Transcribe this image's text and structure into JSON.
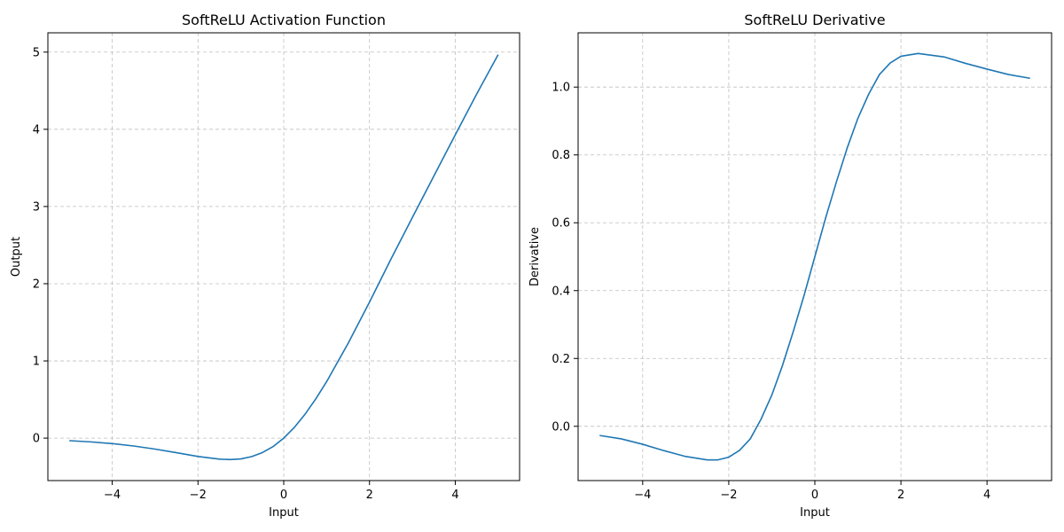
{
  "chart_data": [
    {
      "type": "line",
      "title": "SoftReLU Activation Function",
      "xlabel": "Input",
      "ylabel": "Output",
      "xlim": [
        -5.5,
        5.5
      ],
      "ylim": [
        -0.55,
        5.25
      ],
      "xticks": [
        -4,
        -2,
        0,
        2,
        4
      ],
      "xtick_labels": [
        "−4",
        "−2",
        "0",
        "2",
        "4"
      ],
      "yticks": [
        0,
        1,
        2,
        3,
        4,
        5
      ],
      "ytick_labels": [
        "0",
        "1",
        "2",
        "3",
        "4",
        "5"
      ],
      "grid": true,
      "color": "#1f77b4",
      "series": [
        {
          "x": [
            -5.0,
            -4.5,
            -4.0,
            -3.5,
            -3.0,
            -2.5,
            -2.0,
            -1.5,
            -1.25,
            -1.0,
            -0.75,
            -0.5,
            -0.25,
            0.0,
            0.25,
            0.5,
            0.75,
            1.0,
            1.5,
            2.0,
            2.5,
            3.0,
            3.5,
            4.0,
            4.5,
            5.0
          ],
          "y": [
            -0.033,
            -0.049,
            -0.071,
            -0.102,
            -0.142,
            -0.189,
            -0.238,
            -0.272,
            -0.278,
            -0.269,
            -0.24,
            -0.188,
            -0.11,
            0.0,
            0.14,
            0.312,
            0.51,
            0.731,
            1.226,
            1.762,
            2.318,
            2.858,
            3.394,
            3.928,
            4.458,
            4.967
          ]
        }
      ]
    },
    {
      "type": "line",
      "title": "SoftReLU Derivative",
      "xlabel": "Input",
      "ylabel": "Derivative",
      "xlim": [
        -5.5,
        5.5
      ],
      "ylim": [
        -0.16,
        1.16
      ],
      "xticks": [
        -4,
        -2,
        0,
        2,
        4
      ],
      "xtick_labels": [
        "−4",
        "−2",
        "0",
        "2",
        "4"
      ],
      "yticks": [
        0.0,
        0.2,
        0.4,
        0.6,
        0.8,
        1.0
      ],
      "ytick_labels": [
        "0.0",
        "0.2",
        "0.4",
        "0.6",
        "0.8",
        "1.0"
      ],
      "grid": true,
      "color": "#1f77b4",
      "series": [
        {
          "x": [
            -5.0,
            -4.5,
            -4.0,
            -3.5,
            -3.0,
            -2.5,
            -2.25,
            -2.0,
            -1.75,
            -1.5,
            -1.25,
            -1.0,
            -0.75,
            -0.5,
            -0.25,
            0.0,
            0.25,
            0.5,
            0.75,
            1.0,
            1.25,
            1.5,
            1.75,
            2.0,
            2.4,
            3.0,
            3.5,
            4.0,
            4.5,
            5.0
          ],
          "y": [
            -0.027,
            -0.037,
            -0.053,
            -0.072,
            -0.089,
            -0.099,
            -0.099,
            -0.091,
            -0.071,
            -0.037,
            0.021,
            0.092,
            0.18,
            0.28,
            0.386,
            0.5,
            0.614,
            0.72,
            0.82,
            0.908,
            0.979,
            1.037,
            1.071,
            1.091,
            1.099,
            1.089,
            1.07,
            1.053,
            1.037,
            1.026
          ]
        }
      ]
    }
  ]
}
